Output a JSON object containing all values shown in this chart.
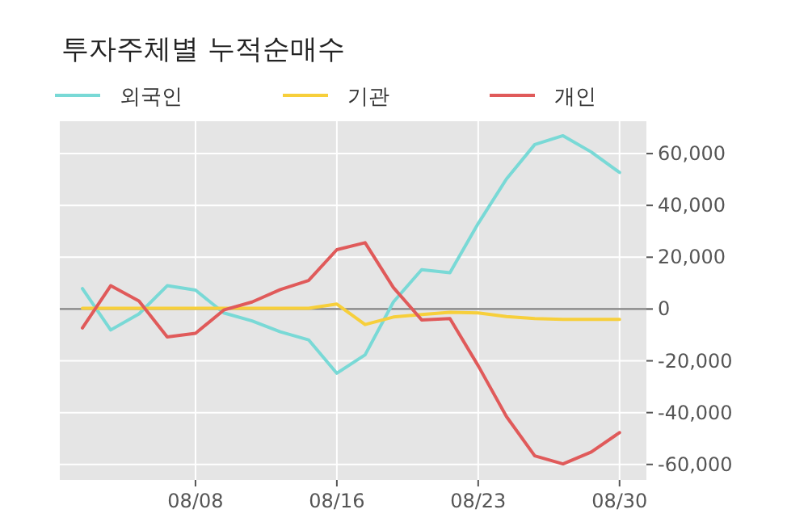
{
  "chart_data": {
    "type": "line",
    "title": "투자주체별 누적순매수",
    "categories": [
      null,
      null,
      null,
      null,
      "08/08",
      null,
      null,
      null,
      null,
      "08/16",
      null,
      null,
      null,
      null,
      "08/23",
      null,
      null,
      null,
      null,
      "08/30"
    ],
    "series": [
      {
        "name": "외국인",
        "color": "#79d9d6",
        "values": [
          7900,
          -8100,
          -1900,
          9000,
          7300,
          -1500,
          -4600,
          -8800,
          -11900,
          -24800,
          -17700,
          2700,
          15200,
          14000,
          33000,
          50200,
          63500,
          66900,
          60600,
          52700
        ]
      },
      {
        "name": "기관",
        "color": "#f7cf3b",
        "values": [
          300,
          300,
          300,
          300,
          300,
          300,
          300,
          300,
          300,
          1900,
          -6000,
          -3100,
          -2100,
          -1300,
          -1500,
          -2900,
          -3700,
          -4000,
          -4000,
          -4000
        ]
      },
      {
        "name": "개인",
        "color": "#e05a5a",
        "values": [
          -7300,
          9000,
          3100,
          -10800,
          -9400,
          -400,
          2700,
          7500,
          11000,
          22900,
          25600,
          8300,
          -4200,
          -3700,
          -21900,
          -41500,
          -56700,
          -59800,
          -55200,
          -47700
        ]
      }
    ],
    "ylim": [
      -66000,
      72500
    ],
    "yticks": [
      {
        "value": -60000,
        "label": "-60,000"
      },
      {
        "value": -40000,
        "label": "-40,000"
      },
      {
        "value": -20000,
        "label": "-20,000"
      },
      0,
      {
        "value": 20000,
        "label": "20,000"
      },
      {
        "value": 40000,
        "label": "40,000"
      },
      {
        "value": 60000,
        "label": "60,000"
      }
    ],
    "ref_lines": [
      {
        "axis": "y",
        "value": 0,
        "color": "#808080"
      }
    ],
    "grid": true,
    "legend": "top left",
    "marker": "none",
    "line_style": "solid"
  }
}
